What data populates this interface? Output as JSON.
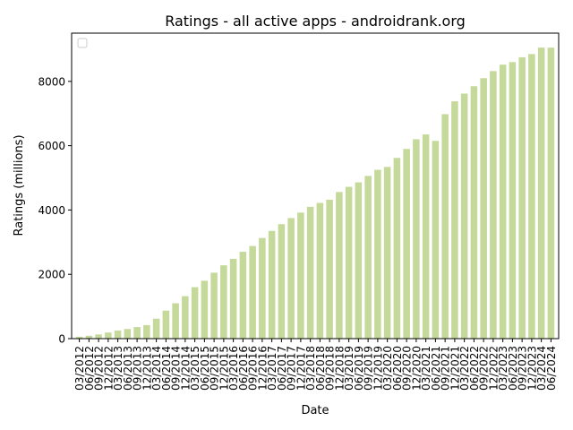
{
  "chart_data": {
    "type": "bar",
    "title": "Ratings - all active apps - androidrank.org",
    "xlabel": "Date",
    "ylabel": "Ratings (millions)",
    "ylim": [
      0,
      9500
    ],
    "yticks": [
      0,
      2000,
      4000,
      6000,
      8000
    ],
    "legend": "top-left",
    "legend_entries": [],
    "bar_color": "#c5d99b",
    "categories": [
      "03/2012",
      "06/2012",
      "09/2012",
      "12/2012",
      "03/2013",
      "06/2013",
      "09/2013",
      "12/2013",
      "03/2014",
      "06/2014",
      "09/2014",
      "12/2014",
      "03/2015",
      "06/2015",
      "09/2015",
      "12/2015",
      "03/2016",
      "06/2016",
      "09/2016",
      "12/2016",
      "03/2017",
      "06/2017",
      "09/2017",
      "12/2017",
      "03/2018",
      "06/2018",
      "09/2018",
      "12/2018",
      "03/2019",
      "06/2019",
      "09/2019",
      "12/2019",
      "03/2020",
      "06/2020",
      "09/2020",
      "12/2020",
      "03/2021",
      "06/2021",
      "09/2021",
      "12/2021",
      "03/2022",
      "06/2022",
      "09/2022",
      "12/2022",
      "03/2023",
      "06/2023",
      "09/2023",
      "12/2023",
      "03/2024",
      "06/2024"
    ],
    "values": [
      60,
      90,
      130,
      190,
      250,
      300,
      360,
      420,
      620,
      870,
      1100,
      1320,
      1600,
      1800,
      2050,
      2280,
      2480,
      2700,
      2880,
      3130,
      3350,
      3560,
      3750,
      3920,
      4100,
      4220,
      4320,
      4560,
      4720,
      4860,
      5060,
      5250,
      5340,
      5620,
      5900,
      6200,
      6350,
      6150,
      6980,
      7380,
      7620,
      7850,
      8100,
      8320,
      8520,
      8600,
      8750,
      8850,
      9050,
      9050
    ]
  }
}
